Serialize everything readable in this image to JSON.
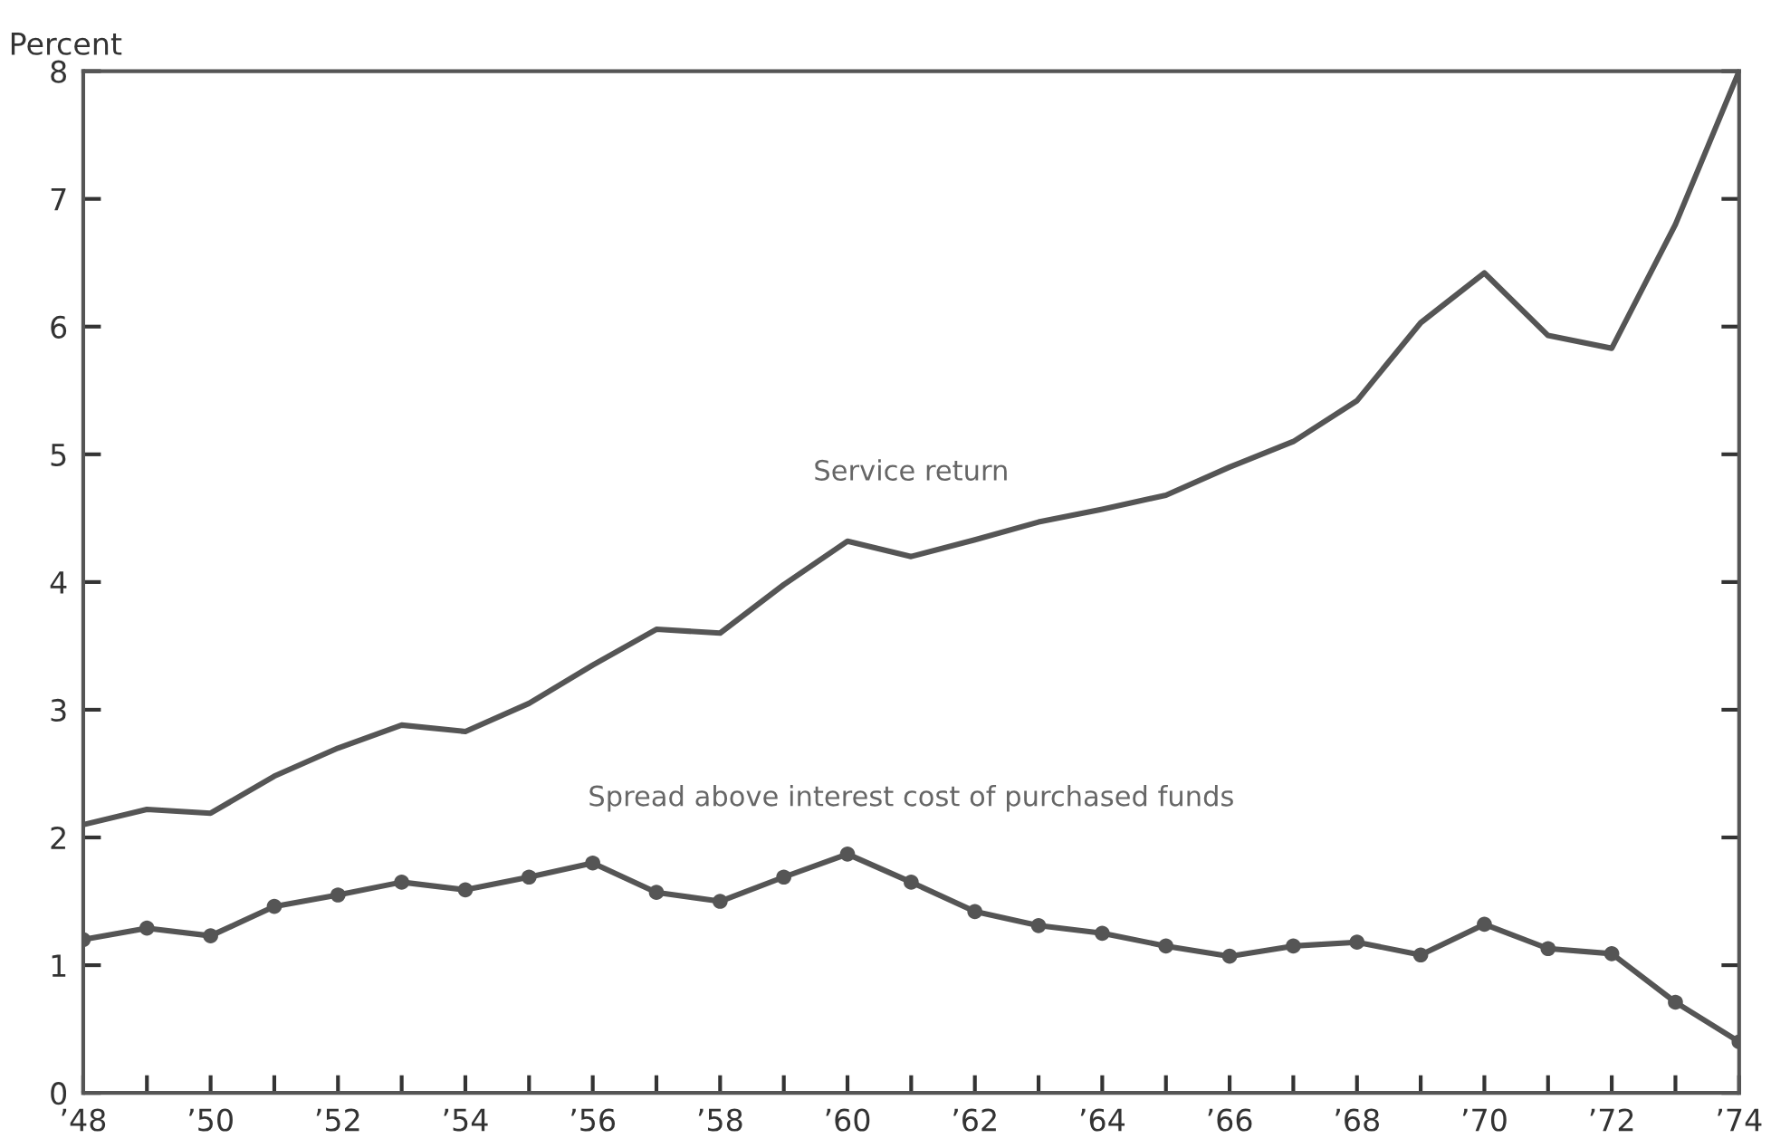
{
  "chart_data": {
    "type": "line",
    "ylabel": "Percent",
    "x": [
      1948,
      1949,
      1950,
      1951,
      1952,
      1953,
      1954,
      1955,
      1956,
      1957,
      1958,
      1959,
      1960,
      1961,
      1962,
      1963,
      1964,
      1965,
      1966,
      1967,
      1968,
      1969,
      1970,
      1971,
      1972,
      1973,
      1974
    ],
    "series": [
      {
        "name": "Service return",
        "color": "#555555",
        "marker": "none",
        "values": [
          2.1,
          2.22,
          2.19,
          2.48,
          2.7,
          2.88,
          2.83,
          3.05,
          3.35,
          3.63,
          3.6,
          3.98,
          4.32,
          4.2,
          4.33,
          4.47,
          4.57,
          4.68,
          4.9,
          5.1,
          5.42,
          6.03,
          6.42,
          5.93,
          5.83,
          6.8,
          8.0
        ]
      },
      {
        "name": "Spread above interest cost of purchased funds",
        "color": "#555555",
        "marker": "circle",
        "values": [
          1.2,
          1.29,
          1.23,
          1.46,
          1.55,
          1.65,
          1.59,
          1.69,
          1.8,
          1.57,
          1.5,
          1.69,
          1.87,
          1.65,
          1.42,
          1.31,
          1.25,
          1.15,
          1.07,
          1.15,
          1.18,
          1.08,
          1.32,
          1.13,
          1.09,
          0.71,
          0.4
        ]
      }
    ],
    "xlim": [
      1948,
      1974
    ],
    "ylim": [
      0,
      8
    ],
    "xticks": [
      {
        "value": 1948,
        "label": "’48"
      },
      {
        "value": 1949,
        "label": null
      },
      {
        "value": 1950,
        "label": "’50"
      },
      {
        "value": 1951,
        "label": null
      },
      {
        "value": 1952,
        "label": "’52"
      },
      {
        "value": 1953,
        "label": null
      },
      {
        "value": 1954,
        "label": "’54"
      },
      {
        "value": 1955,
        "label": null
      },
      {
        "value": 1956,
        "label": "’56"
      },
      {
        "value": 1957,
        "label": null
      },
      {
        "value": 1958,
        "label": "’58"
      },
      {
        "value": 1959,
        "label": null
      },
      {
        "value": 1960,
        "label": "’60"
      },
      {
        "value": 1961,
        "label": null
      },
      {
        "value": 1962,
        "label": "’62"
      },
      {
        "value": 1963,
        "label": null
      },
      {
        "value": 1964,
        "label": "’64"
      },
      {
        "value": 1965,
        "label": null
      },
      {
        "value": 1966,
        "label": "’66"
      },
      {
        "value": 1967,
        "label": null
      },
      {
        "value": 1968,
        "label": "’68"
      },
      {
        "value": 1969,
        "label": null
      },
      {
        "value": 1970,
        "label": "’70"
      },
      {
        "value": 1971,
        "label": null
      },
      {
        "value": 1972,
        "label": "’72"
      },
      {
        "value": 1973,
        "label": null
      },
      {
        "value": 1974,
        "label": "’74"
      }
    ],
    "yticks": [
      0,
      1,
      2,
      3,
      4,
      5,
      6,
      7,
      8
    ],
    "grid": false,
    "legend": false,
    "line_style": "solid"
  }
}
